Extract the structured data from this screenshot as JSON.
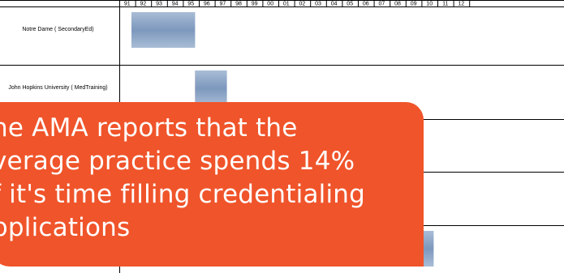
{
  "chart_data": {
    "type": "timeline",
    "x_tick_labels": [
      "91",
      "92",
      "93",
      "94",
      "95",
      "96",
      "97",
      "98",
      "99",
      "00",
      "01",
      "02",
      "03",
      "04",
      "05",
      "06",
      "07",
      "08",
      "09",
      "10",
      "11",
      "12"
    ],
    "rows": [
      {
        "label": "Notre Dame ( SecondaryEd)",
        "segments": [
          {
            "start": "91",
            "end": "95",
            "kind": "blue"
          }
        ]
      },
      {
        "label": "John Hopkins University ( MedTraining)",
        "segments": [
          {
            "start": "95",
            "end": "95",
            "kind": "red"
          },
          {
            "start": "95",
            "end": "97",
            "kind": "blue"
          }
        ]
      },
      {
        "label": "",
        "segments": []
      },
      {
        "label": "",
        "segments": []
      },
      {
        "label": "",
        "segments": [
          {
            "start": "04",
            "end": "07",
            "kind": "red"
          },
          {
            "start": "07",
            "end": "10",
            "kind": "blue"
          }
        ]
      }
    ],
    "colors": {
      "blue": "#8fa8c8",
      "red": "#d8243c",
      "grid": "#000000"
    }
  },
  "callout": {
    "text": "he AMA reports that the\nverage practice spends 14%\nf it's time filling credentialing\npplications",
    "background": "#f0542a"
  }
}
